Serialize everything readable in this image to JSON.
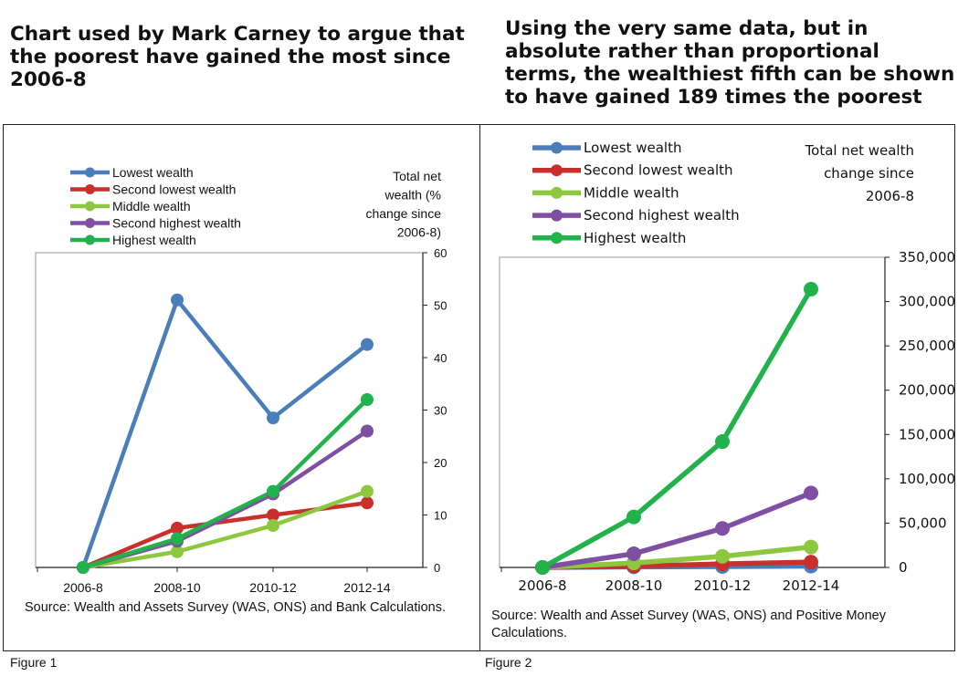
{
  "headings": {
    "left": "Chart used by Mark Carney to argue that the poorest have gained the most since 2006-8",
    "right": "Using the very same data, but in absolute rather than proportional terms, the wealthiest fifth can be shown to have gained 189 times the poorest"
  },
  "figure_labels": [
    "Figure 1",
    "Figure 2"
  ],
  "sources": [
    "Source: Wealth and Assets Survey (WAS, ONS) and Bank Calculations.",
    "Source: Wealth and Asset Survey (WAS, ONS) and Positive Money Calculations."
  ],
  "chart_data": [
    {
      "type": "line",
      "ytitle": [
        "Total net",
        "wealth (%",
        "change since",
        "2006-8)"
      ],
      "categories": [
        "2006-8",
        "2008-10",
        "2010-12",
        "2012-14"
      ],
      "ylim": [
        0,
        60
      ],
      "yticks": [
        0,
        10,
        20,
        30,
        40,
        50,
        60
      ],
      "ytick_labels": [
        "0",
        "10",
        "20",
        "30",
        "40",
        "50",
        "60"
      ],
      "grid": false,
      "legend_position": "top-left",
      "series": [
        {
          "name": "Lowest wealth",
          "color": "#4a7ebb",
          "values": [
            0,
            51,
            28.5,
            42.5
          ]
        },
        {
          "name": "Second lowest wealth",
          "color": "#c9302c",
          "values": [
            0,
            7.5,
            10,
            12.3
          ]
        },
        {
          "name": "Middle wealth",
          "color": "#8dc63f",
          "values": [
            0,
            3,
            8,
            14.5
          ]
        },
        {
          "name": "Second highest wealth",
          "color": "#7e4fa2",
          "values": [
            0,
            5,
            14,
            26
          ]
        },
        {
          "name": "Highest wealth",
          "color": "#22b24c",
          "values": [
            0,
            5.5,
            14.5,
            32
          ]
        }
      ]
    },
    {
      "type": "line",
      "ytitle": [
        "Total net wealth",
        "change since",
        "2006-8"
      ],
      "categories": [
        "2006-8",
        "2008-10",
        "2010-12",
        "2012-14"
      ],
      "ylim": [
        0,
        350000
      ],
      "yticks": [
        0,
        50000,
        100000,
        150000,
        200000,
        250000,
        300000,
        350000
      ],
      "ytick_labels": [
        "0",
        "50,000",
        "100,000",
        "150,000",
        "200,000",
        "250,000",
        "300,000",
        "350,000"
      ],
      "grid": false,
      "legend_position": "top-left",
      "series": [
        {
          "name": "Lowest wealth",
          "color": "#4a7ebb",
          "values": [
            0,
            700,
            1000,
            1500
          ]
        },
        {
          "name": "Second lowest wealth",
          "color": "#c9302c",
          "values": [
            0,
            1500,
            4000,
            6000
          ]
        },
        {
          "name": "Middle wealth",
          "color": "#8dc63f",
          "values": [
            0,
            5000,
            12500,
            23000
          ]
        },
        {
          "name": "Second highest wealth",
          "color": "#7e4fa2",
          "values": [
            0,
            15500,
            44000,
            84000
          ]
        },
        {
          "name": "Highest wealth",
          "color": "#22b24c",
          "values": [
            0,
            57000,
            142000,
            314000
          ]
        }
      ]
    }
  ]
}
